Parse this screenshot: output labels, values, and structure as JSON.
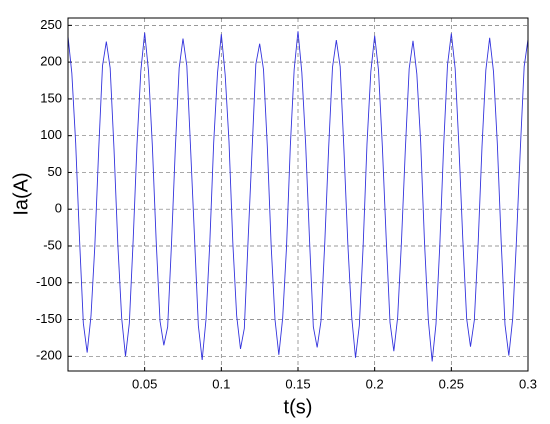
{
  "chart_data": {
    "type": "line",
    "xlabel": "t(s)",
    "ylabel": "Ia(A)",
    "xlim": [
      0,
      0.3
    ],
    "ylim": [
      -220,
      260
    ],
    "xticks": [
      0.05,
      0.1,
      0.15,
      0.2,
      0.25,
      0.3
    ],
    "yticks": [
      -200,
      -150,
      -100,
      -50,
      0,
      50,
      100,
      150,
      200,
      250
    ],
    "grid": true,
    "x": [
      0,
      0.0025,
      0.005,
      0.0075,
      0.01,
      0.0125,
      0.015,
      0.0175,
      0.02,
      0.0225,
      0.025,
      0.0275,
      0.03,
      0.0325,
      0.035,
      0.0375,
      0.04,
      0.0425,
      0.045,
      0.0475,
      0.05,
      0.0525,
      0.055,
      0.0575,
      0.06,
      0.0625,
      0.065,
      0.0675,
      0.07,
      0.0725,
      0.075,
      0.0775,
      0.08,
      0.0825,
      0.085,
      0.0875,
      0.09,
      0.0925,
      0.095,
      0.0975,
      0.1,
      0.1025,
      0.105,
      0.1075,
      0.11,
      0.1125,
      0.115,
      0.1175,
      0.12,
      0.1225,
      0.125,
      0.1275,
      0.13,
      0.1325,
      0.135,
      0.1375,
      0.14,
      0.1425,
      0.145,
      0.1475,
      0.15,
      0.1525,
      0.155,
      0.1575,
      0.16,
      0.1625,
      0.165,
      0.1675,
      0.17,
      0.1725,
      0.175,
      0.1775,
      0.18,
      0.1825,
      0.185,
      0.1875,
      0.19,
      0.1925,
      0.195,
      0.1975,
      0.2,
      0.2025,
      0.205,
      0.2075,
      0.21,
      0.2125,
      0.215,
      0.2175,
      0.22,
      0.2225,
      0.225,
      0.2275,
      0.23,
      0.2325,
      0.235,
      0.2375,
      0.24,
      0.2425,
      0.245,
      0.2475,
      0.25,
      0.2525,
      0.255,
      0.2575,
      0.26,
      0.2625,
      0.265,
      0.2675,
      0.27,
      0.2725,
      0.275,
      0.2775,
      0.28,
      0.2825,
      0.285,
      0.2875,
      0.29,
      0.2925,
      0.295,
      0.2975,
      0.3
    ],
    "series": [
      {
        "name": "Ia",
        "color": "#3333dd",
        "values": [
          235,
          185,
          90,
          -40,
          -155,
          -195,
          -145,
          -50,
          80,
          195,
          228,
          192,
          82,
          -48,
          -148,
          -200,
          -155,
          -42,
          88,
          188,
          240,
          188,
          87,
          -43,
          -152,
          -185,
          -160,
          -47,
          83,
          192,
          232,
          195,
          80,
          -38,
          -158,
          -205,
          -150,
          -45,
          90,
          185,
          238,
          183,
          92,
          -46,
          -145,
          -190,
          -162,
          -40,
          78,
          197,
          225,
          190,
          85,
          -50,
          -150,
          -198,
          -148,
          -52,
          86,
          190,
          242,
          186,
          88,
          -41,
          -160,
          -188,
          -152,
          -44,
          84,
          193,
          230,
          194,
          79,
          -47,
          -146,
          -202,
          -158,
          -49,
          89,
          187,
          236,
          189,
          86,
          -39,
          -154,
          -193,
          -147,
          -43,
          81,
          191,
          229,
          184,
          91,
          -45,
          -151,
          -207,
          -156,
          -48,
          87,
          196,
          239,
          191,
          83,
          -42,
          -149,
          -187,
          -151,
          -46,
          85,
          189,
          233,
          187,
          89,
          -44,
          -157,
          -199,
          -149,
          -41,
          82,
          194,
          231
        ]
      }
    ]
  }
}
